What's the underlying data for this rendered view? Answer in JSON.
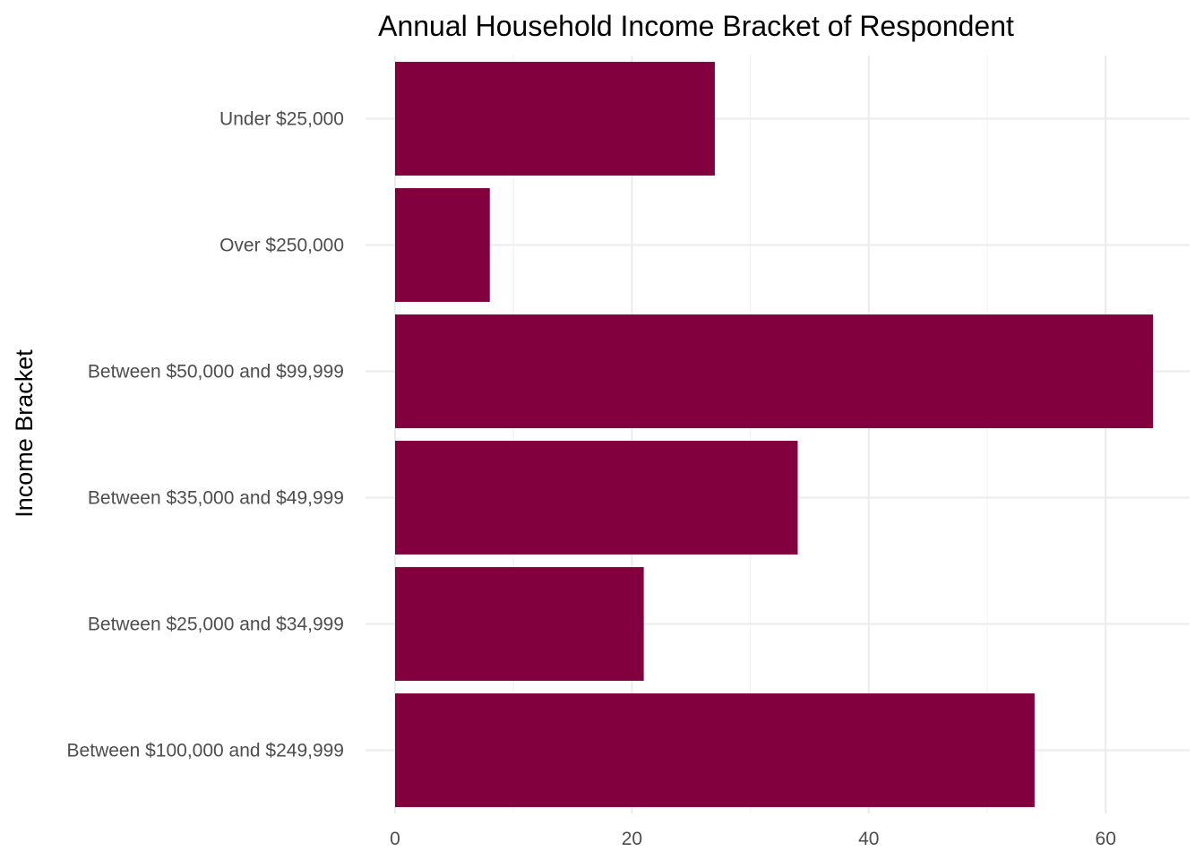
{
  "chart_data": {
    "type": "bar",
    "orientation": "horizontal",
    "title": "Annual Household Income Bracket of Respondent",
    "xlabel": "",
    "ylabel": "Income Bracket",
    "categories": [
      "Under $25,000",
      "Over $250,000",
      "Between $50,000 and $99,999",
      "Between $35,000 and $49,999",
      "Between $25,000 and $34,999",
      "Between $100,000 and $249,999"
    ],
    "values": [
      27,
      8,
      64,
      34,
      21,
      54
    ],
    "xlim": [
      0,
      67
    ],
    "xticks": [
      0,
      20,
      40,
      60
    ],
    "bar_color": "#83003F",
    "grid": true,
    "legend": "none"
  }
}
